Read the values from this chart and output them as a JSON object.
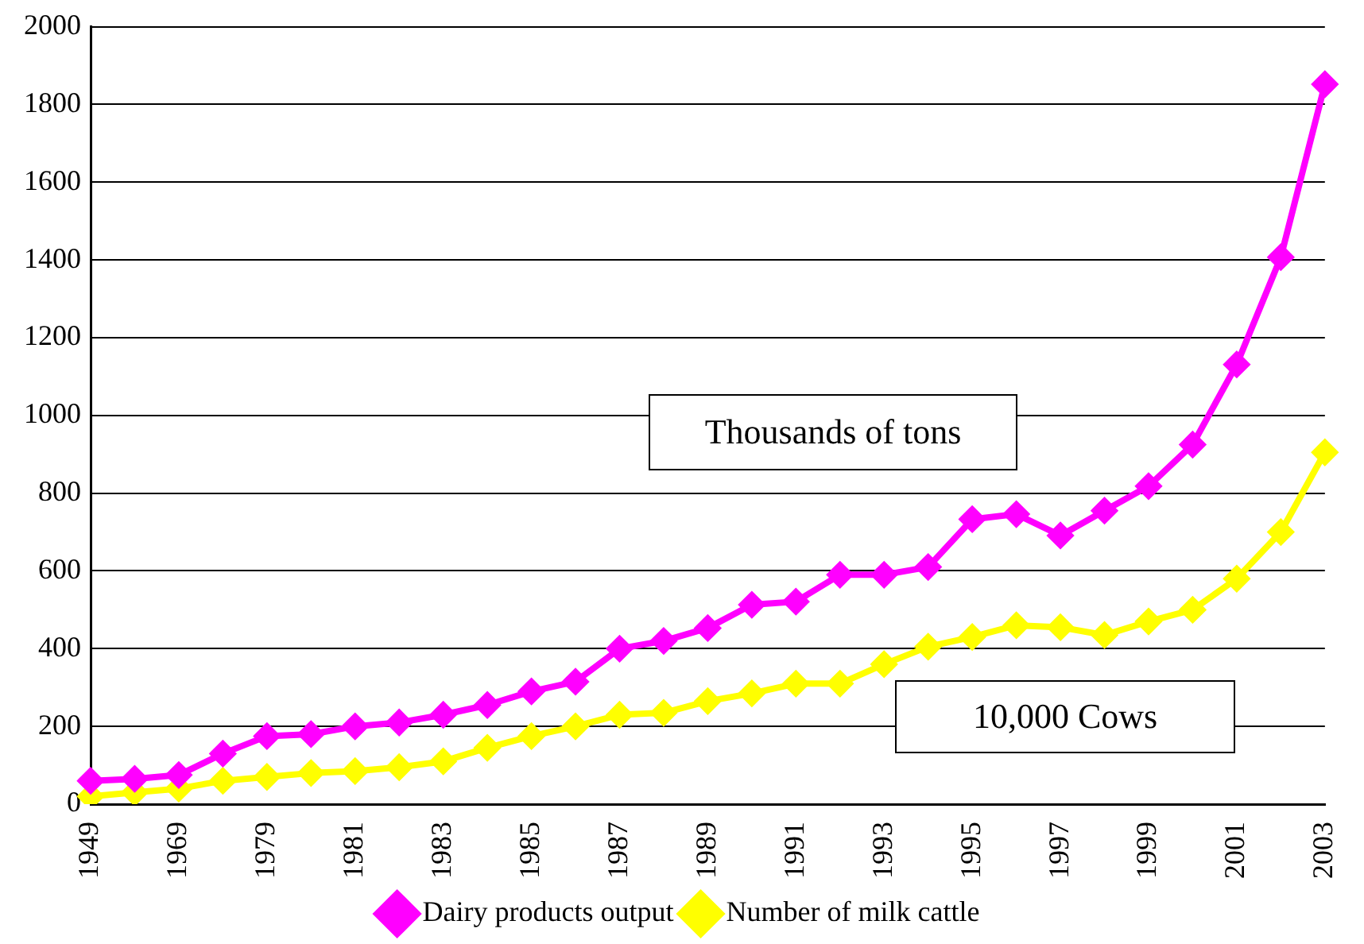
{
  "chart_data": {
    "type": "line",
    "categories": [
      "1949",
      null,
      "1969",
      null,
      "1979",
      null,
      "1981",
      null,
      "1983",
      null,
      "1985",
      null,
      "1987",
      null,
      "1989",
      null,
      "1991",
      null,
      "1993",
      null,
      "1995",
      null,
      "1997",
      null,
      "1999",
      null,
      "2001",
      null,
      "2003"
    ],
    "series": [
      {
        "name": "Dairy products output",
        "color": "#ff00ff",
        "values": [
          60,
          65,
          75,
          130,
          175,
          180,
          200,
          210,
          230,
          255,
          290,
          315,
          400,
          420,
          453,
          513,
          521,
          590,
          590,
          610,
          733,
          746,
          691,
          755,
          818,
          925,
          1131,
          1407,
          1852
        ]
      },
      {
        "name": "Number of milk cattle",
        "color": "#ffff00",
        "values": [
          20,
          30,
          40,
          60,
          70,
          80,
          85,
          95,
          110,
          145,
          175,
          200,
          230,
          235,
          265,
          285,
          310,
          310,
          360,
          405,
          430,
          460,
          455,
          435,
          470,
          500,
          580,
          700,
          905
        ]
      }
    ],
    "ylim": [
      0,
      2000
    ],
    "yticks": [
      0,
      200,
      400,
      600,
      800,
      1000,
      1200,
      1400,
      1600,
      1800,
      2000
    ],
    "grid": "y",
    "legend": "bottom",
    "marker": "diamond",
    "line_style": "solid",
    "annotations": [
      "Thousands of tons",
      "10,000 Cows"
    ]
  }
}
